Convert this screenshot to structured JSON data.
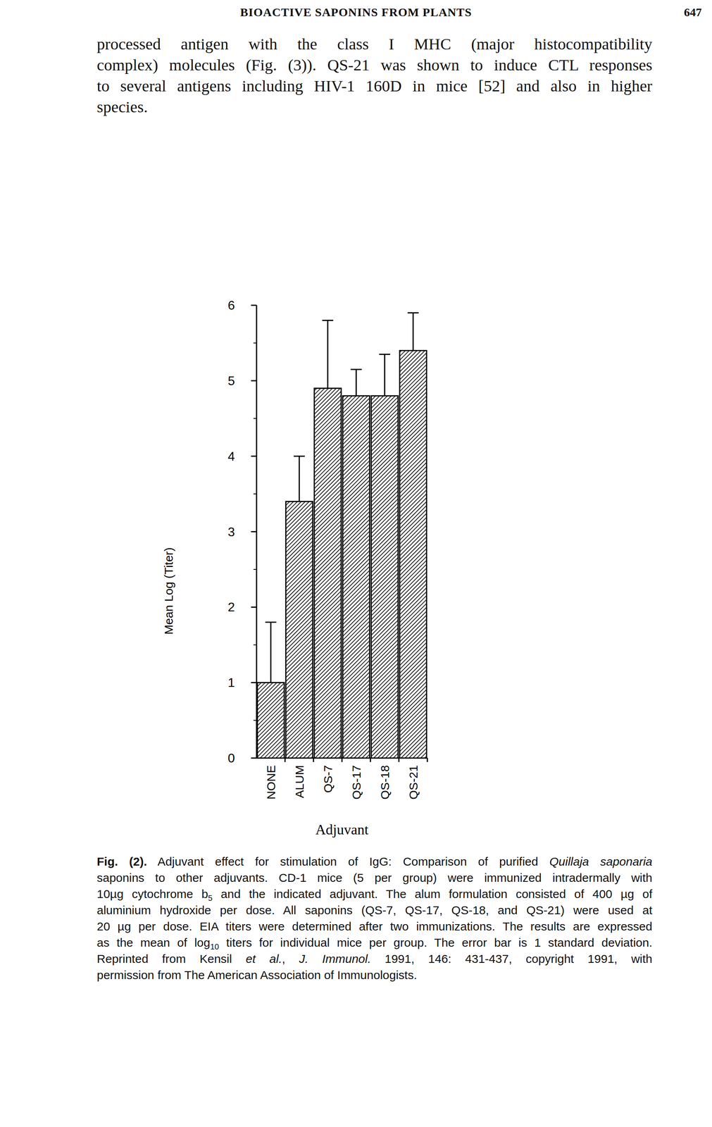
{
  "header": {
    "title": "BIOACTIVE SAPONINS FROM PLANTS",
    "page": "647"
  },
  "paragraph": {
    "lines": [
      "processed antigen with the class I MHC (major histocompatibility",
      "complex) molecules (Fig. (3)). QS-21 was shown to induce CTL responses",
      "to several antigens including HIV-1 160D in mice [52] and also in higher",
      "species."
    ]
  },
  "chart_data": {
    "type": "bar",
    "x_label": "Adjuvant",
    "y_label": "Mean Log (Titer)",
    "categories": [
      "NONE",
      "ALUM",
      "QS-7",
      "QS-17",
      "QS-18",
      "QS-21"
    ],
    "values": [
      1.0,
      3.4,
      4.9,
      4.8,
      4.8,
      5.4
    ],
    "errors": [
      0.8,
      0.6,
      0.9,
      0.35,
      0.55,
      0.5
    ],
    "color": "#000000",
    "ylim": [
      0,
      6
    ],
    "yticks": [
      0,
      1,
      2,
      3,
      4,
      5,
      6
    ],
    "grid": false
  },
  "caption": {
    "lines": [
      [
        {
          "text": "Fig. (2).",
          "style": "bold"
        },
        {
          "text": " Adjuvant effect for stimulation of IgG: Comparison of purified "
        },
        {
          "text": "Quillaja saponaria",
          "style": "italic"
        }
      ],
      [
        {
          "text": "saponins to other adjuvants. CD-1 mice (5 per group) were immunized intradermally with"
        }
      ],
      [
        {
          "text": "10µg cytochrome b"
        },
        {
          "text": "5",
          "style": "sub"
        },
        {
          "text": " and the indicated adjuvant. The alum formulation consisted of 400 µg of"
        }
      ],
      [
        {
          "text": "aluminium hydroxide per dose. All saponins (QS-7, QS-17, QS-18, and QS-21) were used at"
        }
      ],
      [
        {
          "text": "20 µg per dose. EIA titers were determined after two immunizations. The results are expressed"
        }
      ],
      [
        {
          "text": "as the mean of log"
        },
        {
          "text": "10",
          "style": "sub"
        },
        {
          "text": " titers for individual mice per group. The error bar is 1 standard deviation."
        }
      ],
      [
        {
          "text": "Reprinted from Kensil "
        },
        {
          "text": "et al.",
          "style": "italic"
        },
        {
          "text": ", "
        },
        {
          "text": "J. Immunol.",
          "style": "italic"
        },
        {
          "text": " 1991, 146: 431-437, copyright 1991, with"
        }
      ],
      [
        {
          "text": "permission from The American Association of Immunologists."
        }
      ]
    ]
  }
}
